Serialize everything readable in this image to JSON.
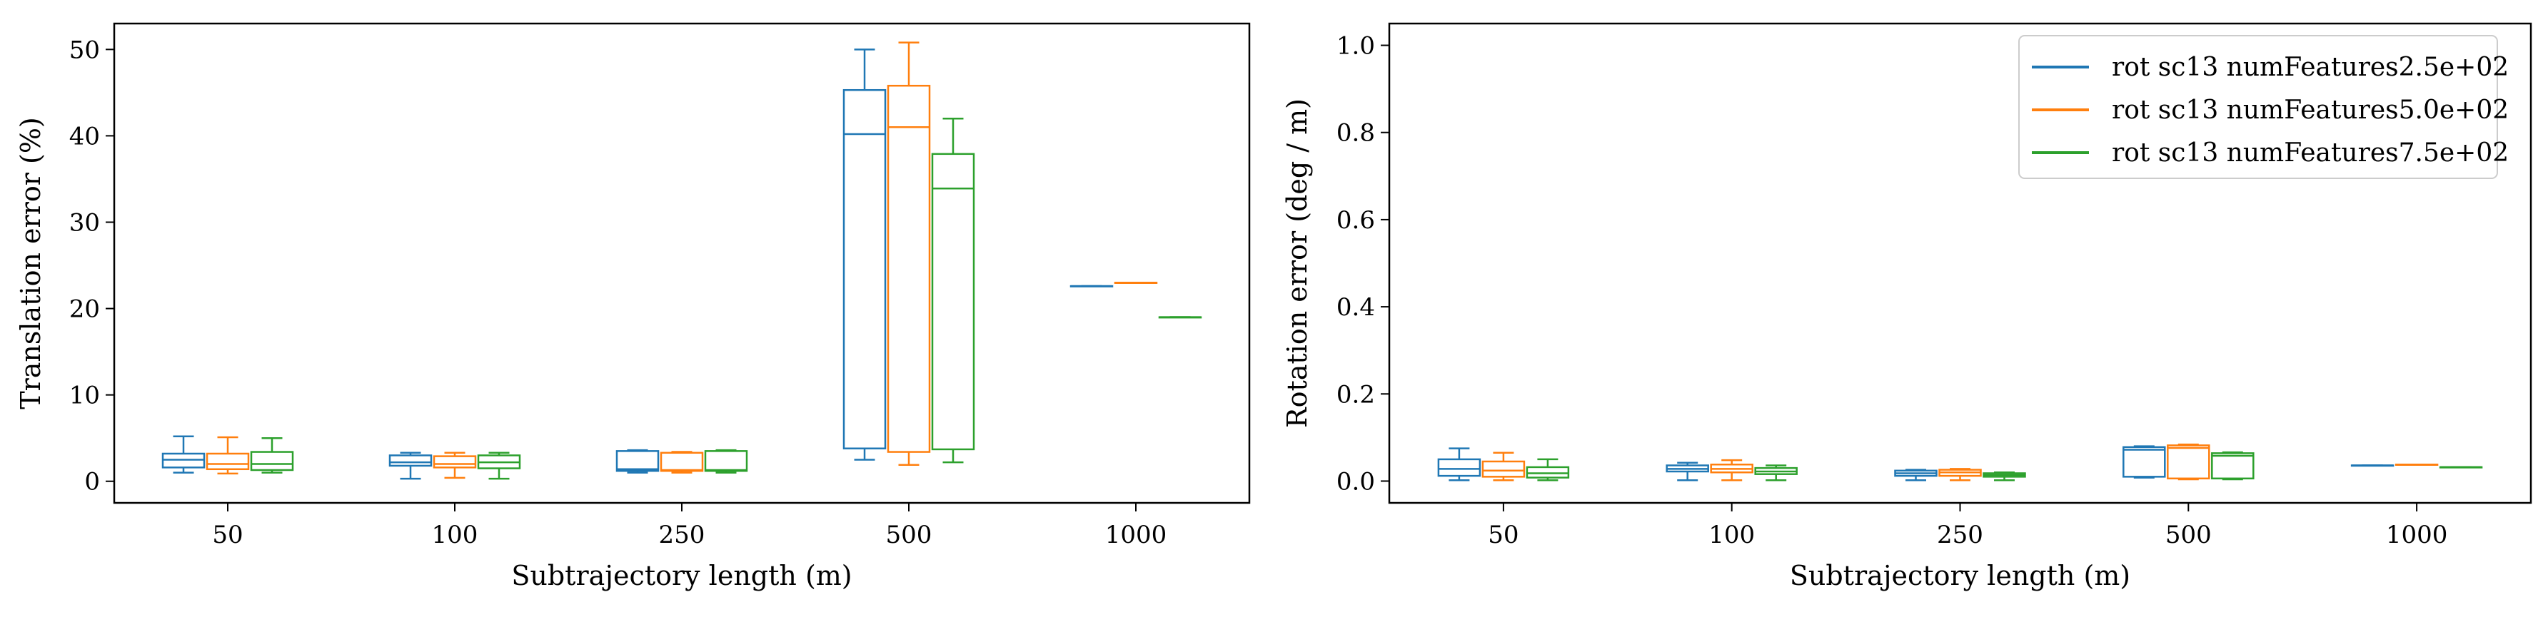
{
  "chart_data": [
    {
      "type": "box",
      "xlabel": "Subtrajectory length (m)",
      "ylabel": "Translation error (%)",
      "categories": [
        "50",
        "100",
        "250",
        "500",
        "1000"
      ],
      "ylim": [
        -2.5,
        53
      ],
      "yticks": [
        0,
        10,
        20,
        30,
        40,
        50
      ],
      "grid": false,
      "series": [
        {
          "color": "#1f77b4",
          "boxes": [
            {
              "whisker_low": 1.0,
              "q1": 1.6,
              "median": 2.5,
              "q3": 3.2,
              "whisker_high": 5.2
            },
            {
              "whisker_low": 0.3,
              "q1": 1.8,
              "median": 2.2,
              "q3": 3.0,
              "whisker_high": 3.3
            },
            {
              "whisker_low": 1.0,
              "q1": 1.2,
              "median": 1.4,
              "q3": 3.5,
              "whisker_high": 3.6
            },
            {
              "whisker_low": 2.5,
              "q1": 3.8,
              "median": 40.2,
              "q3": 45.3,
              "whisker_high": 50.0
            },
            {
              "whisker_low": 22.6,
              "q1": 22.6,
              "median": 22.6,
              "q3": 22.6,
              "whisker_high": 22.6
            }
          ]
        },
        {
          "color": "#ff7f0e",
          "boxes": [
            {
              "whisker_low": 0.9,
              "q1": 1.4,
              "median": 2.0,
              "q3": 3.2,
              "whisker_high": 5.1
            },
            {
              "whisker_low": 0.4,
              "q1": 1.6,
              "median": 2.0,
              "q3": 2.9,
              "whisker_high": 3.3
            },
            {
              "whisker_low": 1.0,
              "q1": 1.2,
              "median": 1.3,
              "q3": 3.3,
              "whisker_high": 3.4
            },
            {
              "whisker_low": 1.9,
              "q1": 3.4,
              "median": 41.0,
              "q3": 45.8,
              "whisker_high": 50.8
            },
            {
              "whisker_low": 23.0,
              "q1": 23.0,
              "median": 23.0,
              "q3": 23.0,
              "whisker_high": 23.0
            }
          ]
        },
        {
          "color": "#2ca02c",
          "boxes": [
            {
              "whisker_low": 1.0,
              "q1": 1.3,
              "median": 2.0,
              "q3": 3.4,
              "whisker_high": 5.0
            },
            {
              "whisker_low": 0.3,
              "q1": 1.5,
              "median": 2.2,
              "q3": 3.0,
              "whisker_high": 3.3
            },
            {
              "whisker_low": 1.0,
              "q1": 1.2,
              "median": 1.3,
              "q3": 3.5,
              "whisker_high": 3.6
            },
            {
              "whisker_low": 2.2,
              "q1": 3.7,
              "median": 33.9,
              "q3": 37.9,
              "whisker_high": 42.0
            },
            {
              "whisker_low": 19.0,
              "q1": 19.0,
              "median": 19.0,
              "q3": 19.0,
              "whisker_high": 19.0
            }
          ]
        }
      ]
    },
    {
      "type": "box",
      "xlabel": "Subtrajectory length (m)",
      "ylabel": "Rotation error (deg / m)",
      "categories": [
        "50",
        "100",
        "250",
        "500",
        "1000"
      ],
      "ylim": [
        -0.05,
        1.05
      ],
      "yticks": [
        0.0,
        0.2,
        0.4,
        0.6,
        0.8,
        1.0
      ],
      "grid": false,
      "legend": {
        "placement": "top-right"
      },
      "series": [
        {
          "name": "rot sc13 numFeatures2.5e+02",
          "color": "#1f77b4",
          "boxes": [
            {
              "whisker_low": 0.002,
              "q1": 0.012,
              "median": 0.028,
              "q3": 0.05,
              "whisker_high": 0.075
            },
            {
              "whisker_low": 0.002,
              "q1": 0.022,
              "median": 0.028,
              "q3": 0.036,
              "whisker_high": 0.042
            },
            {
              "whisker_low": 0.002,
              "q1": 0.012,
              "median": 0.018,
              "q3": 0.024,
              "whisker_high": 0.026
            },
            {
              "whisker_low": 0.008,
              "q1": 0.01,
              "median": 0.072,
              "q3": 0.078,
              "whisker_high": 0.08
            },
            {
              "whisker_low": 0.036,
              "q1": 0.036,
              "median": 0.036,
              "q3": 0.036,
              "whisker_high": 0.036
            }
          ]
        },
        {
          "name": "rot sc13 numFeatures5.0e+02",
          "color": "#ff7f0e",
          "boxes": [
            {
              "whisker_low": 0.002,
              "q1": 0.01,
              "median": 0.024,
              "q3": 0.045,
              "whisker_high": 0.065
            },
            {
              "whisker_low": 0.002,
              "q1": 0.02,
              "median": 0.028,
              "q3": 0.038,
              "whisker_high": 0.048
            },
            {
              "whisker_low": 0.002,
              "q1": 0.012,
              "median": 0.02,
              "q3": 0.026,
              "whisker_high": 0.028
            },
            {
              "whisker_low": 0.004,
              "q1": 0.006,
              "median": 0.076,
              "q3": 0.082,
              "whisker_high": 0.084
            },
            {
              "whisker_low": 0.038,
              "q1": 0.038,
              "median": 0.038,
              "q3": 0.038,
              "whisker_high": 0.038
            }
          ]
        },
        {
          "name": "rot sc13 numFeatures7.5e+02",
          "color": "#2ca02c",
          "boxes": [
            {
              "whisker_low": 0.002,
              "q1": 0.008,
              "median": 0.018,
              "q3": 0.032,
              "whisker_high": 0.05
            },
            {
              "whisker_low": 0.002,
              "q1": 0.016,
              "median": 0.022,
              "q3": 0.03,
              "whisker_high": 0.036
            },
            {
              "whisker_low": 0.002,
              "q1": 0.01,
              "median": 0.014,
              "q3": 0.018,
              "whisker_high": 0.02
            },
            {
              "whisker_low": 0.004,
              "q1": 0.006,
              "median": 0.058,
              "q3": 0.064,
              "whisker_high": 0.066
            },
            {
              "whisker_low": 0.032,
              "q1": 0.032,
              "median": 0.032,
              "q3": 0.032,
              "whisker_high": 0.032
            }
          ]
        }
      ]
    }
  ]
}
